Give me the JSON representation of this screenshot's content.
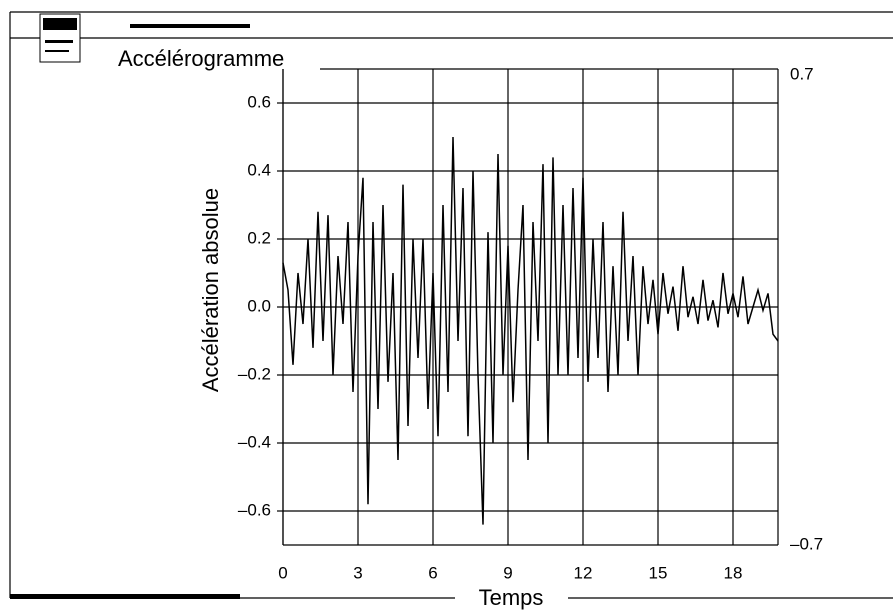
{
  "chart_data": {
    "type": "line",
    "title": "Accélérogramme",
    "x_label": "Temps",
    "y_label": "Accélération absolue",
    "x": [
      0,
      0.2,
      0.4,
      0.6,
      0.8,
      1,
      1.2,
      1.4,
      1.6,
      1.8,
      2,
      2.2,
      2.4,
      2.6,
      2.8,
      3,
      3.2,
      3.4,
      3.6,
      3.8,
      4,
      4.2,
      4.4,
      4.6,
      4.8,
      5,
      5.2,
      5.4,
      5.6,
      5.8,
      6,
      6.2,
      6.4,
      6.6,
      6.8,
      7,
      7.2,
      7.4,
      7.6,
      7.8,
      8,
      8.2,
      8.4,
      8.6,
      8.8,
      9,
      9.2,
      9.4,
      9.6,
      9.8,
      10,
      10.2,
      10.4,
      10.6,
      10.8,
      11,
      11.2,
      11.4,
      11.6,
      11.8,
      12,
      12.2,
      12.4,
      12.6,
      12.8,
      13,
      13.2,
      13.4,
      13.6,
      13.8,
      14,
      14.2,
      14.4,
      14.6,
      14.8,
      15,
      15.2,
      15.4,
      15.6,
      15.8,
      16,
      16.2,
      16.4,
      16.6,
      16.8,
      17,
      17.2,
      17.4,
      17.6,
      17.8,
      18,
      18.2,
      18.4,
      18.6,
      18.8,
      19,
      19.2,
      19.4,
      19.6,
      19.8
    ],
    "values": [
      0.13,
      0.05,
      -0.17,
      0.1,
      -0.05,
      0.2,
      -0.12,
      0.28,
      -0.1,
      0.27,
      -0.2,
      0.15,
      -0.05,
      0.25,
      -0.25,
      0.15,
      0.38,
      -0.58,
      0.25,
      -0.3,
      0.3,
      -0.22,
      0.1,
      -0.45,
      0.36,
      -0.35,
      0.2,
      -0.15,
      0.2,
      -0.3,
      0.1,
      -0.38,
      0.3,
      -0.25,
      0.5,
      -0.1,
      0.35,
      -0.38,
      0.4,
      -0.2,
      -0.64,
      0.22,
      -0.4,
      0.45,
      -0.2,
      0.18,
      -0.28,
      0.05,
      0.3,
      -0.45,
      0.25,
      -0.1,
      0.42,
      -0.4,
      0.44,
      -0.2,
      0.3,
      -0.2,
      0.35,
      -0.15,
      0.38,
      -0.22,
      0.2,
      -0.15,
      0.25,
      -0.25,
      0.12,
      -0.2,
      0.28,
      -0.1,
      0.15,
      -0.2,
      0.12,
      -0.05,
      0.08,
      -0.08,
      0.1,
      -0.02,
      0.06,
      -0.07,
      0.12,
      -0.03,
      0.03,
      -0.05,
      0.08,
      -0.04,
      0.02,
      -0.06,
      0.1,
      -0.02,
      0.04,
      -0.03,
      0.09,
      -0.05,
      0,
      0.05,
      -0.01,
      0.04,
      -0.08,
      -0.1
    ],
    "color": "#000000",
    "xlim": [
      0,
      19.8
    ],
    "xticks": [
      0,
      3,
      6,
      9,
      12,
      15,
      18
    ],
    "ylim": [
      -0.7,
      0.7
    ],
    "yticks": [
      {
        "value": -0.6,
        "label": "–0.6"
      },
      {
        "value": -0.4,
        "label": "–0.4"
      },
      {
        "value": -0.2,
        "label": "–0.2"
      },
      {
        "value": 0,
        "label": "0.0"
      },
      0.2,
      0.4,
      0.6
    ],
    "y2lim": [
      -0.7,
      0.7
    ],
    "y2ticks": [
      {
        "value": -0.7,
        "label": "–0.7"
      },
      0.7
    ],
    "grid": true
  }
}
